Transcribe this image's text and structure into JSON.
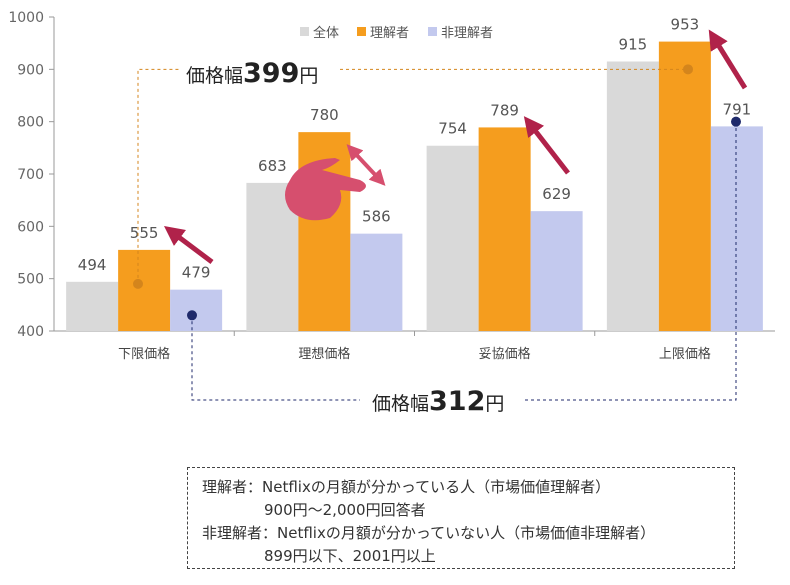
{
  "chart_data": {
    "type": "bar",
    "categories": [
      "下限価格",
      "理想価格",
      "妥協価格",
      "上限価格"
    ],
    "series": [
      {
        "name": "全体",
        "color": "#d9d9d9",
        "values": [
          494,
          683,
          754,
          915
        ]
      },
      {
        "name": "理解者",
        "color": "#f59d1e",
        "values": [
          555,
          780,
          789,
          953
        ]
      },
      {
        "name": "非理解者",
        "color": "#c3c9ee",
        "values": [
          479,
          586,
          629,
          791
        ]
      }
    ],
    "ylim": [
      400,
      1000
    ],
    "yticks": [
      400,
      500,
      600,
      700,
      800,
      900,
      1000
    ],
    "legend": "top",
    "grid": false,
    "annotations": {
      "range_understand": {
        "prefix": "価格幅",
        "value": "399",
        "suffix": "円",
        "color": "#d4851c",
        "from": 555,
        "to": 953
      },
      "range_non": {
        "prefix": "価格幅",
        "value": "312",
        "suffix": "円",
        "color": "#1f2a6b",
        "from": 479,
        "to": 791
      }
    },
    "arrow_color": "#b0224a",
    "hand_color": "#d64f6e"
  },
  "note": {
    "line1": "理解者：Netflixの月額が分かっている人（市場価値理解者）",
    "line2": "900円～2,000円回答者",
    "line3": "非理解者：Netflixの月額が分かっていない人（市場価値非理解者）",
    "line4": "899円以下、2001円以上"
  }
}
